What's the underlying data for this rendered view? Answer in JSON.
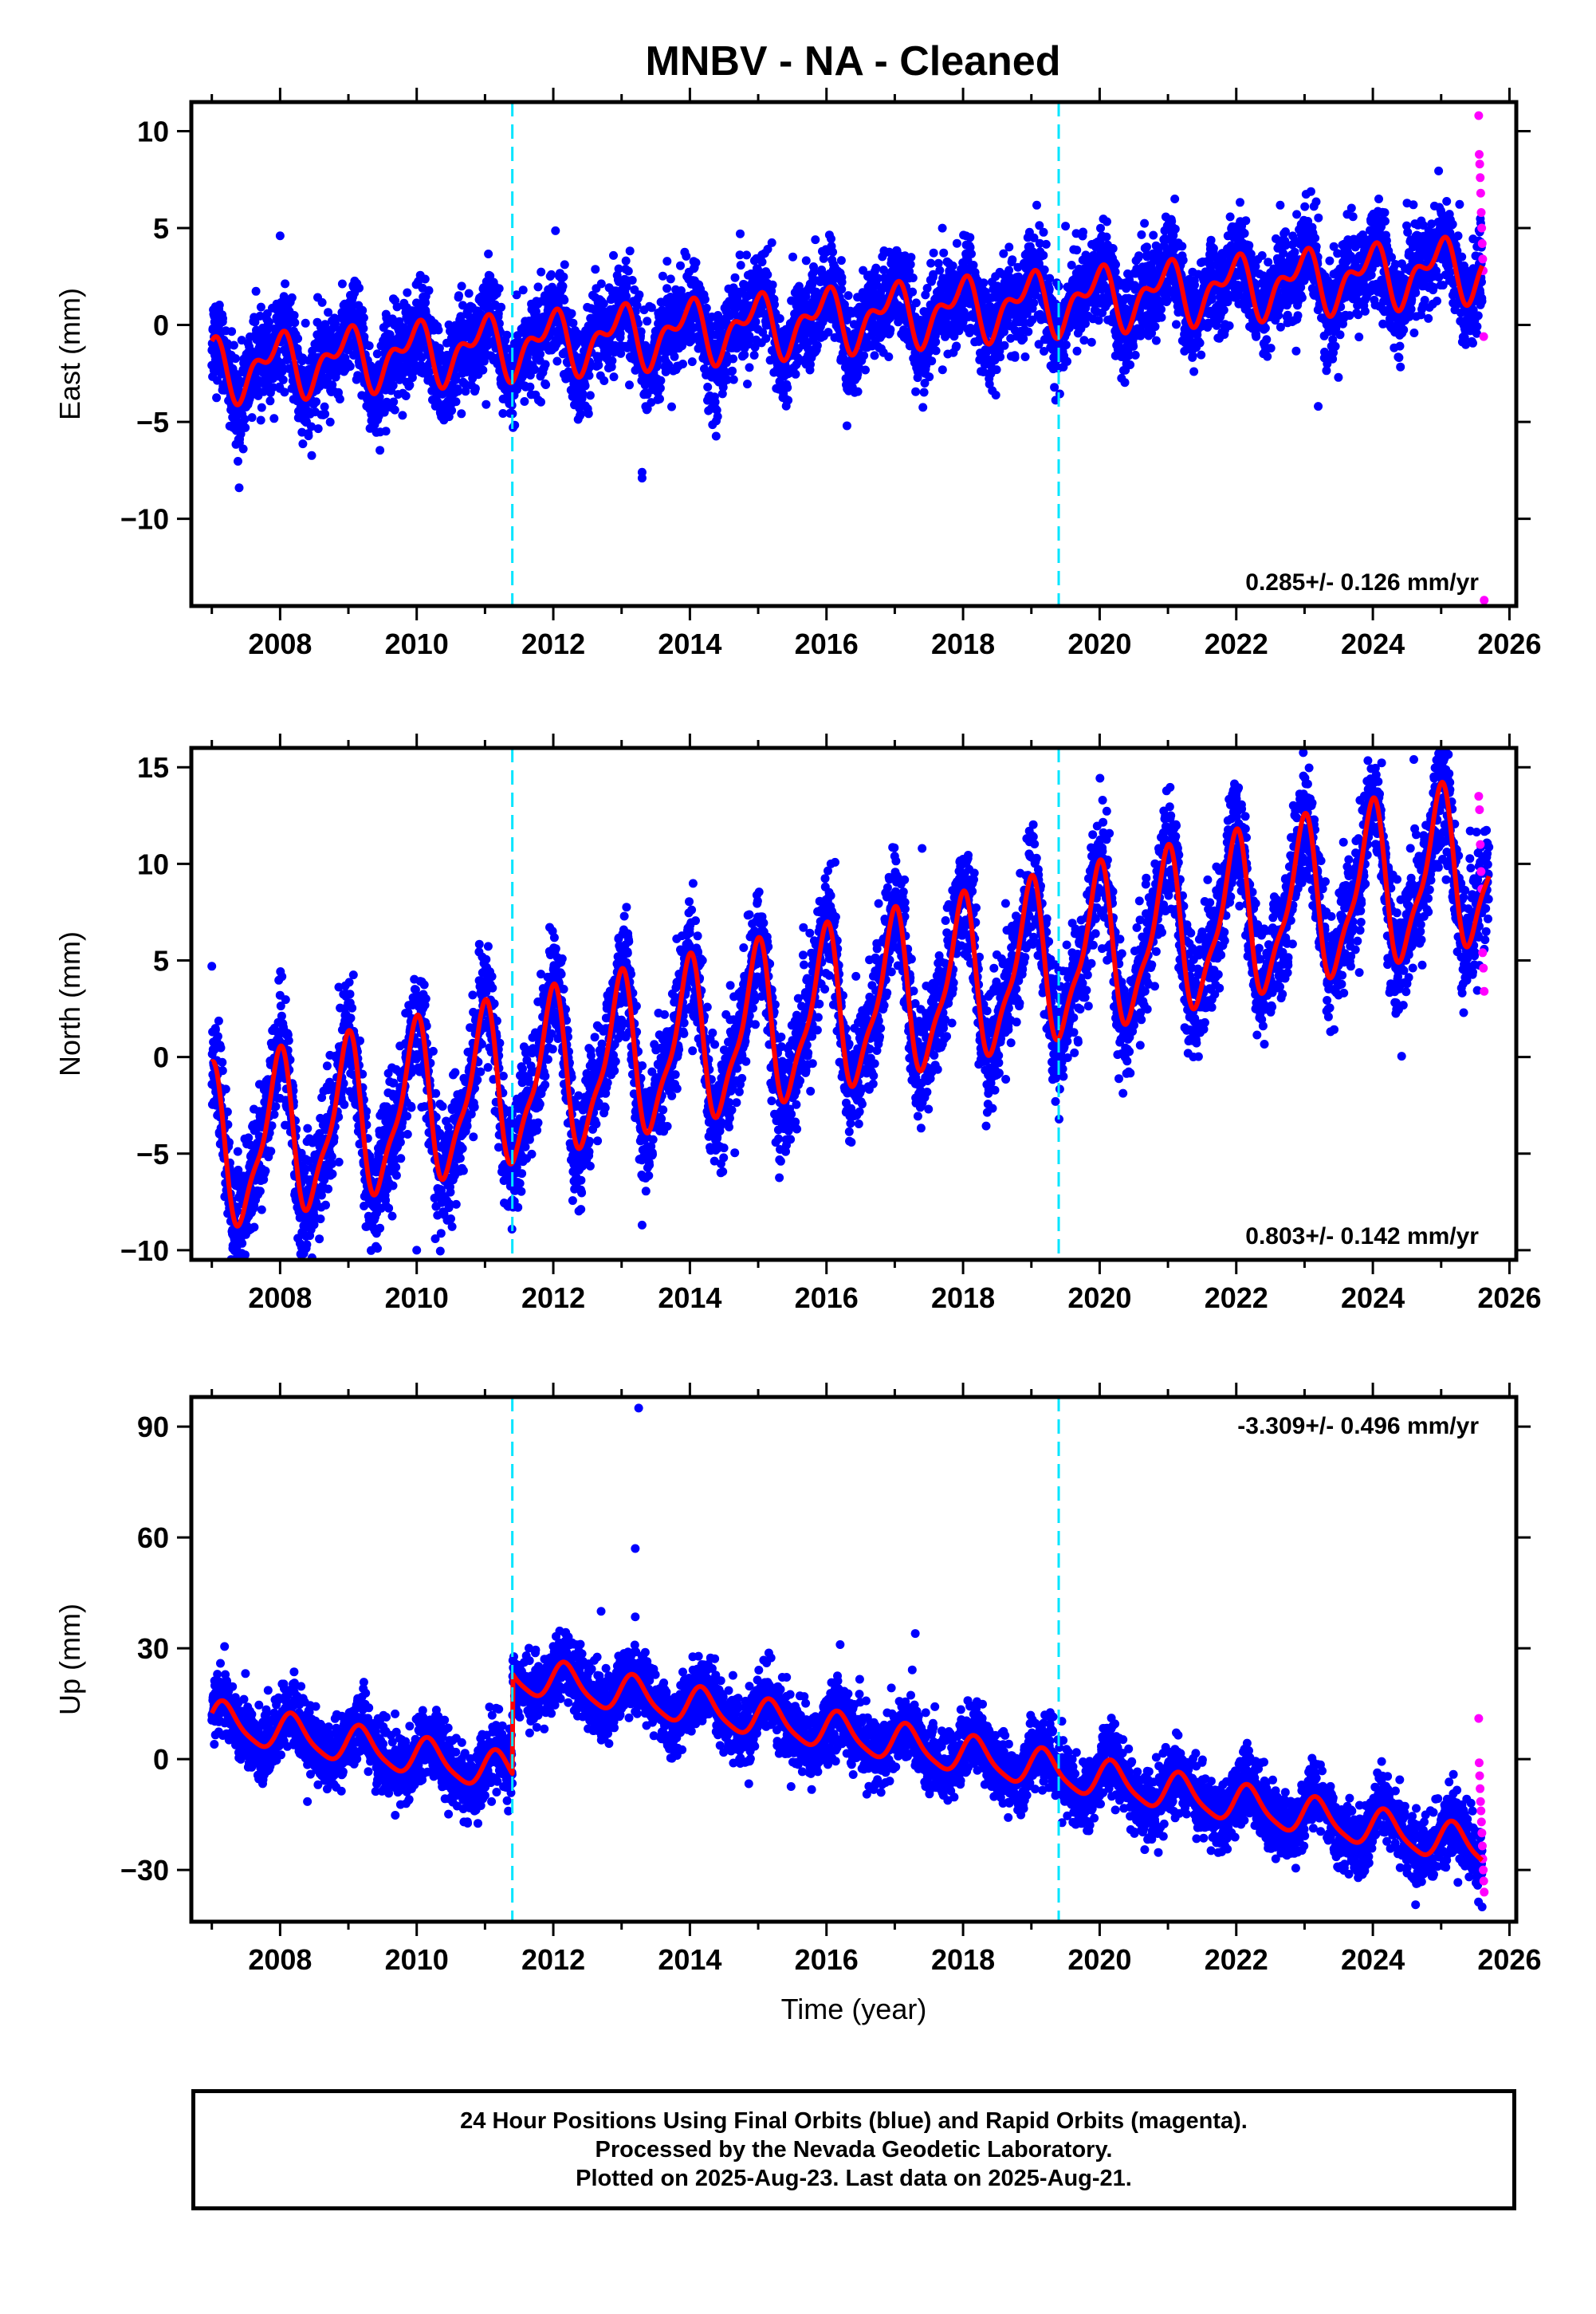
{
  "title": "MNBV  - NA - Cleaned",
  "footer": {
    "line1": "24 Hour Positions Using Final Orbits (blue) and Rapid Orbits (magenta).",
    "line2": "Processed by the Nevada Geodetic Laboratory.",
    "line3": "Plotted on 2025-Aug-23. Last data on 2025-Aug-21."
  },
  "colors": {
    "final": "#0000ff",
    "rapid": "#ff00ff",
    "model": "#ff0000",
    "steps": "#00e5ff"
  },
  "chart_data": [
    {
      "type": "scatter",
      "component": "East",
      "ylabel": "East (mm)",
      "xlabel": "",
      "xlim": [
        2006.7,
        2026.1
      ],
      "ylim": [
        -14.5,
        11.5
      ],
      "xticks": [
        2008,
        2010,
        2012,
        2014,
        2016,
        2018,
        2020,
        2022,
        2024,
        2026
      ],
      "yticks": [
        10,
        5,
        0,
        -5,
        -10
      ],
      "ytick_labels": [
        "10",
        "5",
        "0",
        "−5",
        "−10"
      ],
      "rate": "0.285+/- 0.126 mm/yr",
      "rate_position": "bottom-right",
      "offset_years": [
        2011.4,
        2019.4
      ],
      "model": {
        "start": 2007.0,
        "end": 2025.6,
        "offset": -2.3,
        "velocity": 0.285,
        "annual_amp": 1.3,
        "annual_phase": 1.9,
        "semiannual_amp": 0.8,
        "semiannual_phase": 0.3,
        "steps": []
      },
      "scatter_sigma": 1.2,
      "outliers": [
        [
          2007.4,
          -8.4
        ],
        [
          2013.3,
          -7.6
        ],
        [
          2013.3,
          -7.9
        ],
        [
          2016.3,
          -5.2
        ],
        [
          2019.5,
          5.1
        ],
        [
          2021.1,
          6.5
        ],
        [
          2023.2,
          -4.2
        ],
        [
          2008.0,
          4.6
        ]
      ],
      "rapid": {
        "start": 2025.55,
        "end": 2025.63,
        "values": [
          10.8,
          8.8,
          8.3,
          7.6,
          6.8,
          5.8,
          5.0,
          4.2,
          3.4,
          2.8,
          -0.6,
          -14.2
        ]
      }
    },
    {
      "type": "scatter",
      "component": "North",
      "ylabel": "North (mm)",
      "xlabel": "",
      "xlim": [
        2006.7,
        2026.1
      ],
      "ylim": [
        -10.5,
        16.0
      ],
      "xticks": [
        2008,
        2010,
        2012,
        2014,
        2016,
        2018,
        2020,
        2022,
        2024,
        2026
      ],
      "yticks": [
        15,
        10,
        5,
        0,
        -5,
        -10
      ],
      "ytick_labels": [
        "15",
        "10",
        "5",
        "0",
        "−5",
        "−10"
      ],
      "rate": "0.803+/- 0.142 mm/yr",
      "rate_position": "bottom-right",
      "offset_years": [
        2011.4,
        2019.4
      ],
      "model": {
        "start": 2007.0,
        "end": 2025.7,
        "offset": -5.0,
        "velocity": 0.803,
        "annual_amp": 3.9,
        "annual_phase": 1.8,
        "semiannual_amp": 1.2,
        "semiannual_phase": 0.9,
        "steps": []
      },
      "scatter_sigma": 1.5,
      "outliers": [
        [
          2017.4,
          10.8
        ],
        [
          2013.3,
          -8.7
        ],
        [
          2024.6,
          15.4
        ],
        [
          2010.0,
          -10.0
        ]
      ],
      "rapid": {
        "start": 2025.55,
        "end": 2025.63,
        "values": [
          13.5,
          12.8,
          11.0,
          9.6,
          8.7,
          5.4,
          4.6,
          3.4
        ]
      }
    },
    {
      "type": "scatter",
      "component": "Up",
      "ylabel": "Up (mm)",
      "xlabel": "Time (year)",
      "xlim": [
        2006.7,
        2026.1
      ],
      "ylim": [
        -44.0,
        98.0
      ],
      "xticks": [
        2008,
        2010,
        2012,
        2014,
        2016,
        2018,
        2020,
        2022,
        2024,
        2026
      ],
      "yticks": [
        90,
        60,
        30,
        0,
        -30
      ],
      "ytick_labels": [
        "90",
        "60",
        "30",
        "0",
        "−30"
      ],
      "rate": "-3.309+/- 0.496 mm/yr",
      "rate_position": "top-right",
      "offset_years": [
        2011.4,
        2019.4
      ],
      "model": {
        "start": 2007.0,
        "end": 2025.6,
        "offset": 10.5,
        "velocity": -3.309,
        "annual_amp": 5.0,
        "annual_phase": 0.4,
        "semiannual_amp": 1.0,
        "semiannual_phase": 0.0,
        "steps": [
          [
            2011.4,
            27.0
          ]
        ]
      },
      "scatter_sigma": 4.5,
      "outliers": [
        [
          2013.25,
          95.0
        ],
        [
          2013.2,
          57.0
        ],
        [
          2012.7,
          40.0
        ],
        [
          2013.2,
          38.5
        ],
        [
          2017.3,
          34.0
        ],
        [
          2016.2,
          31.0
        ],
        [
          2008.4,
          -11.5
        ],
        [
          2025.6,
          -40.0
        ]
      ],
      "rapid": {
        "start": 2025.55,
        "end": 2025.63,
        "values": [
          11.0,
          -1.0,
          -4.5,
          -8.0,
          -11.5,
          -14.0,
          -17.0,
          -20.0,
          -23.5,
          -27.0,
          -30.0,
          -33.0,
          -36.0
        ]
      }
    }
  ]
}
